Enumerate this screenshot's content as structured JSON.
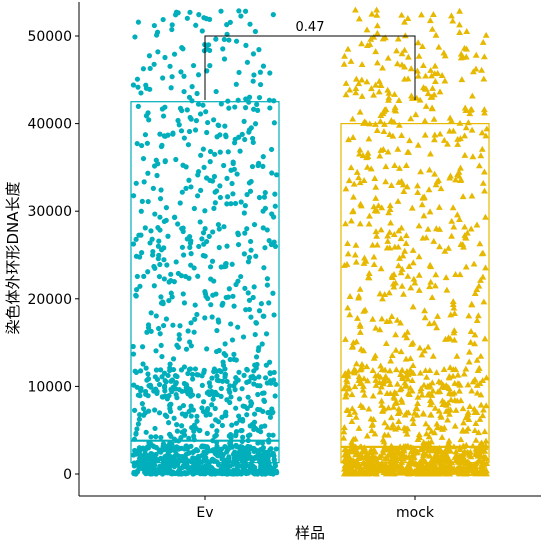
{
  "chart_data": {
    "type": "box-jitter",
    "title": "",
    "xlabel": "样品",
    "ylabel": "染色体外环形DNA长度",
    "categories": [
      "Ev",
      "mock"
    ],
    "ylim": [
      -1500,
      53500
    ],
    "yticks": [
      0,
      10000,
      20000,
      30000,
      40000,
      50000
    ],
    "ytick_labels": [
      "0",
      "10000",
      "20000",
      "30000",
      "40000",
      "50000"
    ],
    "grid": false,
    "legend": "none",
    "series": [
      {
        "category": "Ev",
        "color": "#00AFBB",
        "marker": "circle",
        "box": {
          "q1": 1300,
          "median": 3800,
          "q3": 42500
        }
      },
      {
        "category": "mock",
        "color": "#E7B800",
        "marker": "triangle",
        "box": {
          "q1": 1300,
          "median": 3100,
          "q3": 40000
        }
      }
    ],
    "annotations": [
      {
        "type": "significance-bracket",
        "from": "Ev",
        "to": "mock",
        "y": 50000,
        "label": "0.47"
      }
    ]
  }
}
